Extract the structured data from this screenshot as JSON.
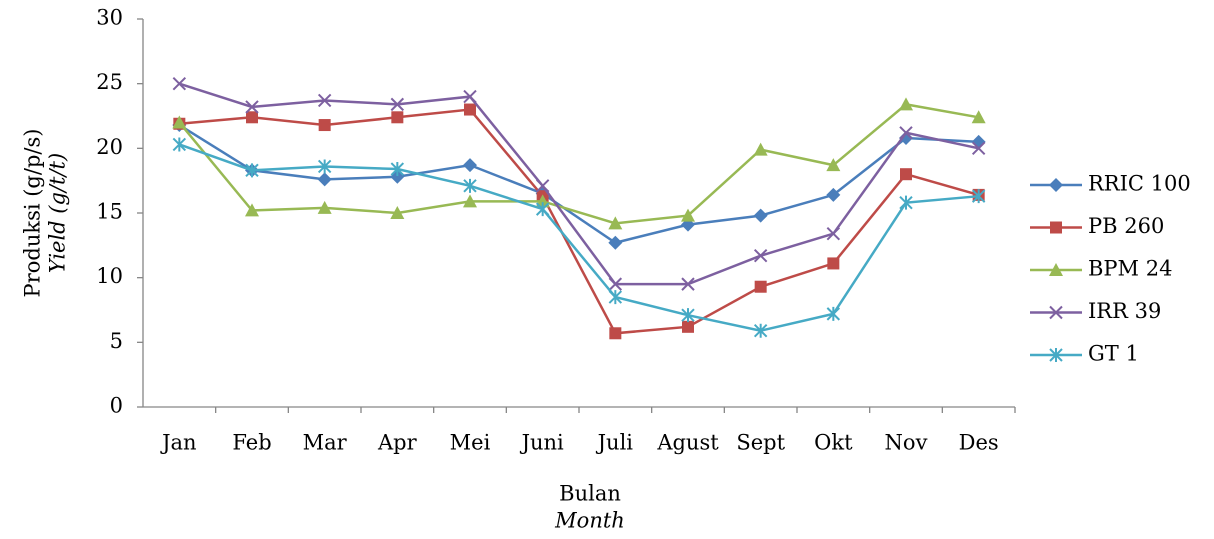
{
  "chart_data": {
    "type": "line",
    "y_title": "Produksi (g/p/s)",
    "y_title_en": "Yield (g/t/t)",
    "x_title": "Bulan",
    "x_title_en": "Month",
    "categories": [
      "Jan",
      "Feb",
      "Mar",
      "Apr",
      "Mei",
      "Juni",
      "Juli",
      "Agust",
      "Sept",
      "Okt",
      "Nov",
      "Des"
    ],
    "ylim": [
      0,
      30
    ],
    "yticks": [
      0,
      5,
      10,
      15,
      20,
      25,
      30
    ],
    "grid": false,
    "legend": "right",
    "series": [
      {
        "name": "RRIC 100",
        "color": "#4a7ebb",
        "marker": "diamond",
        "values": [
          21.8,
          18.3,
          17.6,
          17.8,
          18.7,
          16.5,
          12.7,
          14.1,
          14.8,
          16.4,
          20.8,
          20.5
        ]
      },
      {
        "name": "PB 260",
        "color": "#be4b48",
        "marker": "square",
        "values": [
          21.9,
          22.4,
          21.8,
          22.4,
          23.0,
          16.3,
          5.7,
          6.2,
          9.3,
          11.1,
          18.0,
          16.4
        ]
      },
      {
        "name": "BPM 24",
        "color": "#98b954",
        "marker": "triangle",
        "values": [
          22.0,
          15.2,
          15.4,
          15.0,
          15.9,
          15.9,
          14.2,
          14.8,
          19.9,
          18.7,
          23.4,
          22.4
        ]
      },
      {
        "name": "IRR 39",
        "color": "#7d60a0",
        "marker": "x",
        "values": [
          25.0,
          23.2,
          23.7,
          23.4,
          24.0,
          17.1,
          9.5,
          9.5,
          11.7,
          13.4,
          21.2,
          20.0
        ]
      },
      {
        "name": "GT 1",
        "color": "#46aac5",
        "marker": "star",
        "values": [
          20.3,
          18.3,
          18.6,
          18.4,
          17.1,
          15.3,
          8.5,
          7.1,
          5.9,
          7.2,
          15.8,
          16.3
        ]
      }
    ]
  }
}
